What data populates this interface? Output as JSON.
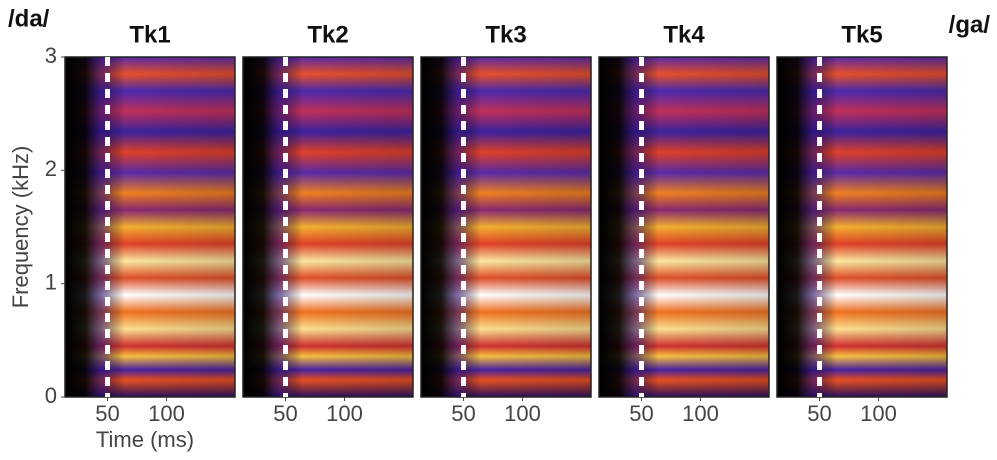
{
  "labels": {
    "left": "/da/",
    "right": "/ga/"
  },
  "chart_data": [
    {
      "type": "spectrogram",
      "title": "Tk1",
      "xlabel": "Time (ms)",
      "ylabel": "Frequency (kHz)",
      "xlim": [
        14,
        158
      ],
      "ylim": [
        0,
        3
      ],
      "xticks": [
        50,
        100
      ],
      "yticks": [
        0,
        1,
        2,
        3
      ],
      "marker_x": 50
    },
    {
      "type": "spectrogram",
      "title": "Tk2",
      "xlim": [
        14,
        158
      ],
      "ylim": [
        0,
        3
      ],
      "xticks": [
        50,
        100
      ],
      "marker_x": 50
    },
    {
      "type": "spectrogram",
      "title": "Tk3",
      "xlim": [
        14,
        158
      ],
      "ylim": [
        0,
        3
      ],
      "xticks": [
        50,
        100
      ],
      "marker_x": 50
    },
    {
      "type": "spectrogram",
      "title": "Tk4",
      "xlim": [
        14,
        158
      ],
      "ylim": [
        0,
        3
      ],
      "xticks": [
        50,
        100
      ],
      "marker_x": 50
    },
    {
      "type": "spectrogram",
      "title": "Tk5",
      "xlim": [
        14,
        158
      ],
      "ylim": [
        0,
        3
      ],
      "xticks": [
        50,
        100
      ],
      "marker_x": 50
    }
  ]
}
